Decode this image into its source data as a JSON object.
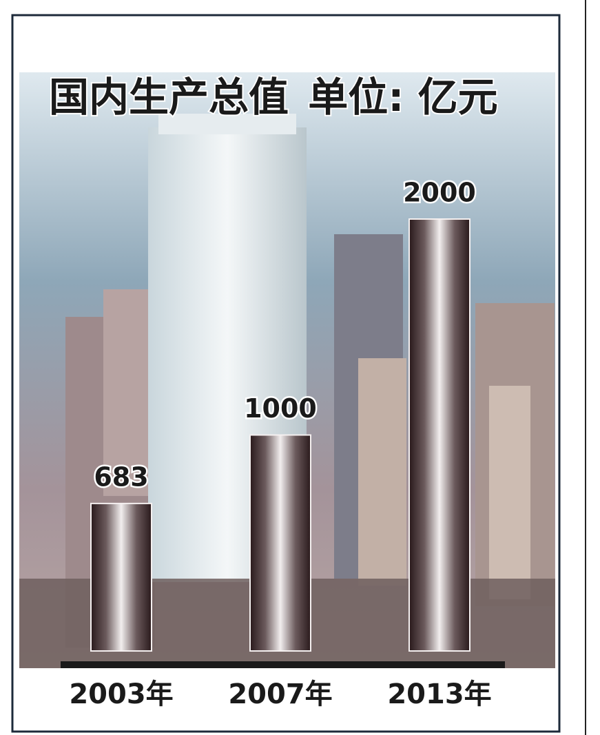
{
  "chart_data": {
    "type": "bar",
    "title": "国内生产总值",
    "subtitle": "单位: 亿元",
    "categories": [
      "2003年",
      "2007年",
      "2013年"
    ],
    "values": [
      683,
      1000,
      2000
    ]
  }
}
